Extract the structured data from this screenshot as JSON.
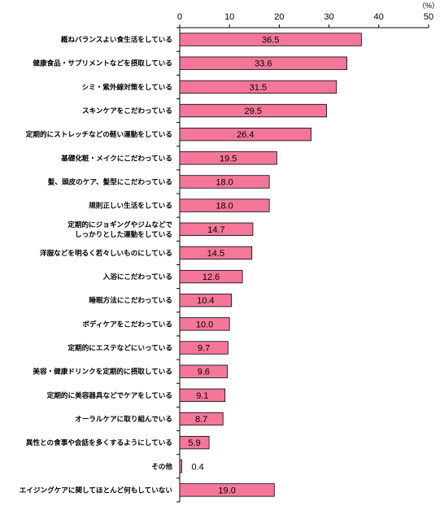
{
  "chart_data": {
    "type": "bar",
    "orientation": "horizontal",
    "unit_label": "（%）",
    "xlim": [
      0,
      50
    ],
    "x_ticks": [
      "0",
      "10",
      "20",
      "30",
      "40",
      "50"
    ],
    "grid": false,
    "bar_color": "#f4779a",
    "bar_edge_color": "#000000",
    "categories": [
      [
        "概ねバランスよい食生活をしている"
      ],
      [
        "健康食品・サプリメントなどを摂取している"
      ],
      [
        "シミ・紫外線対策をしている"
      ],
      [
        "スキンケアをこだわっている"
      ],
      [
        "定期的にストレッチなどの軽い運動をしている"
      ],
      [
        "基礎化粧・メイクにこだわっている"
      ],
      [
        "髪、頭皮のケア、髪型にこだわっている"
      ],
      [
        "規則正しい生活をしている"
      ],
      [
        "定期的にジョギングやジムなどで",
        "しっかりとした運動をしている"
      ],
      [
        "洋服などを明るく若々しいものにしている"
      ],
      [
        "入浴にこだわっている"
      ],
      [
        "睡眠方法にこだわっている"
      ],
      [
        "ボディケアをこだわっている"
      ],
      [
        "定期的にエステなどにいっている"
      ],
      [
        "美容・健康ドリンクを定期的に摂取している"
      ],
      [
        "定期的に美容器具などでケアをしている"
      ],
      [
        "オーラルケアに取り組んでいる"
      ],
      [
        "異性との食事や会話を多くするようにしている"
      ],
      [
        "その他"
      ],
      [
        "エイジングケアに関してほとんど何もしていない"
      ]
    ],
    "values": [
      36.5,
      33.6,
      31.5,
      29.5,
      26.4,
      19.5,
      18.0,
      18.0,
      14.7,
      14.5,
      12.6,
      10.4,
      10.0,
      9.7,
      9.6,
      9.1,
      8.7,
      5.9,
      0.4,
      19.0
    ],
    "value_labels": [
      "36.5",
      "33.6",
      "31.5",
      "29.5",
      "26.4",
      "19.5",
      "18.0",
      "18.0",
      "14.7",
      "14.5",
      "12.6",
      "10.4",
      "10.0",
      "9.7",
      "9.6",
      "9.1",
      "8.7",
      "5.9",
      "0.4",
      "19.0"
    ]
  }
}
